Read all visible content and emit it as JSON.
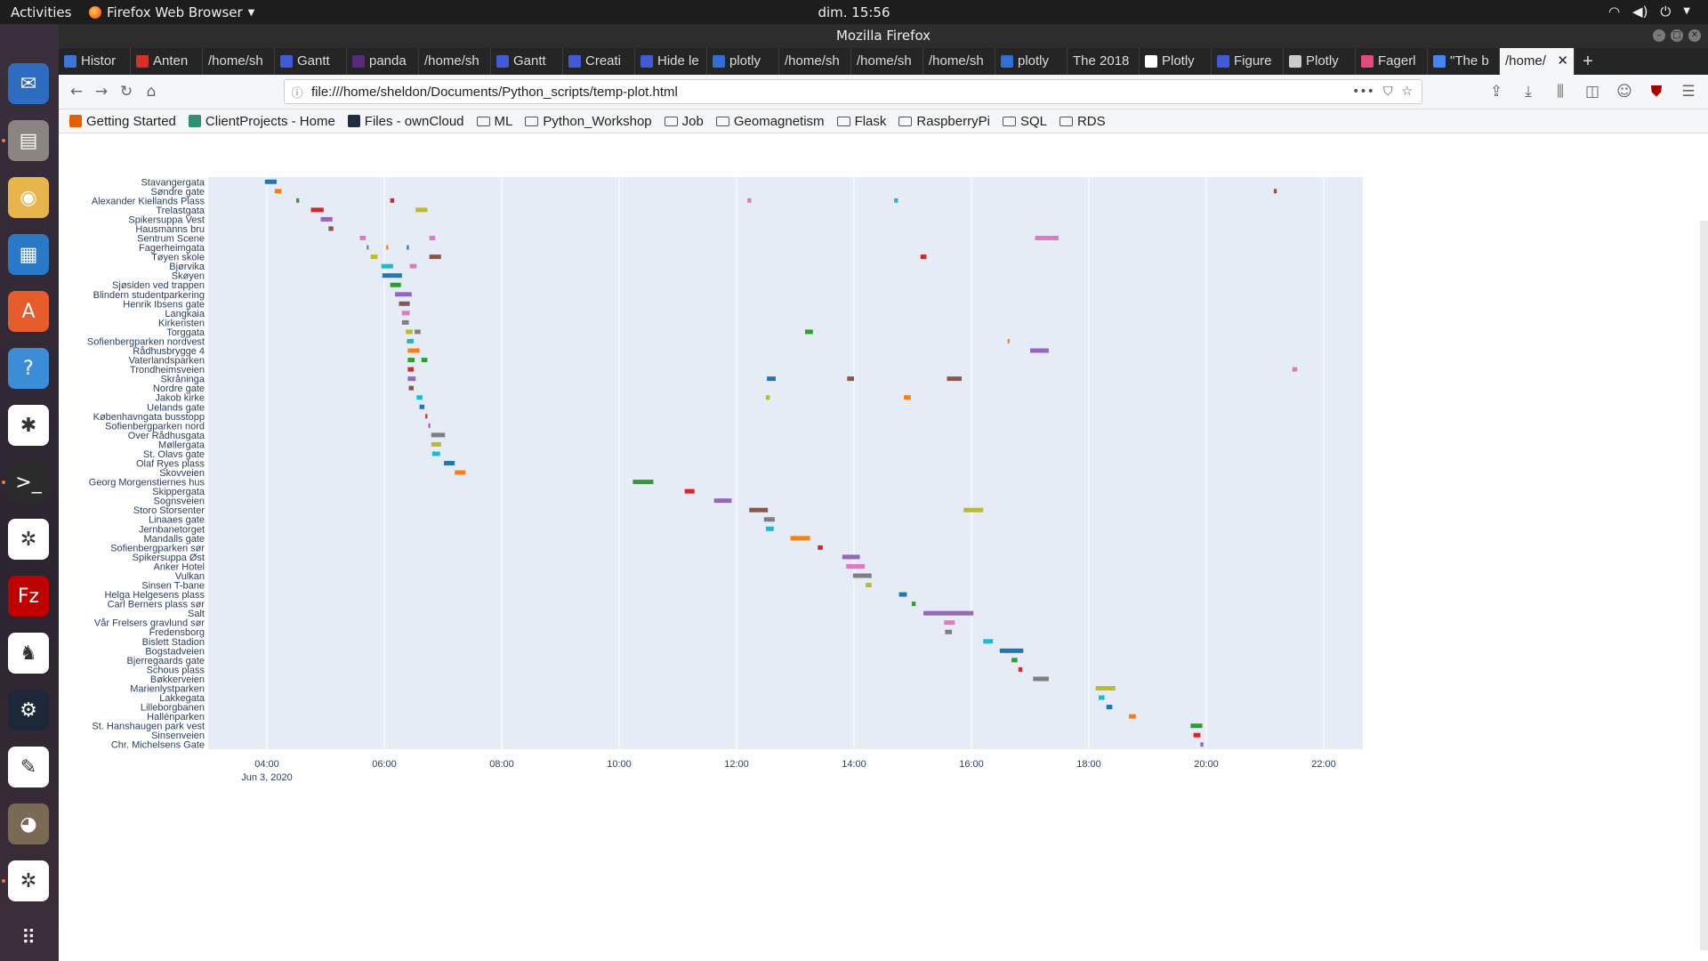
{
  "topbar": {
    "activities": "Activities",
    "app_name": "Firefox Web Browser",
    "clock": "dim. 15:56"
  },
  "window": {
    "title": "Mozilla Firefox"
  },
  "tabs": [
    {
      "label": "Histor",
      "fav": "#3a76d8",
      "active": false
    },
    {
      "label": "Anten",
      "fav": "#d93025",
      "active": false
    },
    {
      "label": "/home/sh",
      "fav": "",
      "active": false
    },
    {
      "label": "Gantt",
      "fav": "#3f5bd8",
      "active": false
    },
    {
      "label": "panda",
      "fav": "#5a2b7b",
      "active": false
    },
    {
      "label": "/home/sh",
      "fav": "",
      "active": false
    },
    {
      "label": "Gantt",
      "fav": "#3f5bd8",
      "active": false
    },
    {
      "label": "Creati",
      "fav": "#3f5bd8",
      "active": false
    },
    {
      "label": "Hide le",
      "fav": "#3f5bd8",
      "active": false
    },
    {
      "label": "plotly",
      "fav": "#2f6fd8",
      "active": false
    },
    {
      "label": "/home/sh",
      "fav": "",
      "active": false
    },
    {
      "label": "/home/sh",
      "fav": "",
      "active": false
    },
    {
      "label": "/home/sh",
      "fav": "",
      "active": false
    },
    {
      "label": "plotly",
      "fav": "#2f6fd8",
      "active": false
    },
    {
      "label": "The 2018",
      "fav": "",
      "active": false
    },
    {
      "label": "Plotly",
      "fav": "#ffffff",
      "active": false
    },
    {
      "label": "Figure",
      "fav": "#3f5bd8",
      "active": false
    },
    {
      "label": "Plotly",
      "fav": "#cccccc",
      "active": false
    },
    {
      "label": "Fagerl",
      "fav": "#e34b7a",
      "active": false
    },
    {
      "label": "\"The b",
      "fav": "#4285f4",
      "active": false
    },
    {
      "label": "/home/",
      "fav": "",
      "active": true
    }
  ],
  "url": "file:///home/sheldon/Documents/Python_scripts/temp-plot.html",
  "bookmarks": [
    {
      "label": "Getting Started",
      "type": "fav",
      "color": "#e66000"
    },
    {
      "label": "ClientProjects - Home",
      "type": "fav",
      "color": "#2f8f6f"
    },
    {
      "label": "Files - ownCloud",
      "type": "fav",
      "color": "#1d2d44"
    },
    {
      "label": "ML",
      "type": "folder"
    },
    {
      "label": "Python_Workshop",
      "type": "folder"
    },
    {
      "label": "Job",
      "type": "folder"
    },
    {
      "label": "Geomagnetism",
      "type": "folder"
    },
    {
      "label": "Flask",
      "type": "folder"
    },
    {
      "label": "RaspberryPi",
      "type": "folder"
    },
    {
      "label": "SQL",
      "type": "folder"
    },
    {
      "label": "RDS",
      "type": "folder"
    }
  ],
  "dock": [
    {
      "name": "thunderbird-icon",
      "color": "#2d6cc0",
      "glyph": "✉",
      "dot": false
    },
    {
      "name": "files-icon",
      "color": "#8a8580",
      "glyph": "▤",
      "dot": true
    },
    {
      "name": "rhythmbox-icon",
      "color": "#e8b54a",
      "glyph": "◉",
      "dot": false
    },
    {
      "name": "libreoffice-writer-icon",
      "color": "#2a78c8",
      "glyph": "▦",
      "dot": false
    },
    {
      "name": "software-center-icon",
      "color": "#e65c2b",
      "glyph": "A",
      "dot": false
    },
    {
      "name": "help-icon",
      "color": "#3b8dd6",
      "glyph": "?",
      "dot": false
    },
    {
      "name": "slack-icon",
      "color": "#ffffff",
      "glyph": "✱",
      "dot": false
    },
    {
      "name": "terminal-icon",
      "color": "#2b2b2b",
      "glyph": ">_",
      "dot": true
    },
    {
      "name": "network-app-icon",
      "color": "#ffffff",
      "glyph": "✲",
      "dot": false
    },
    {
      "name": "filezilla-icon",
      "color": "#bf0000",
      "glyph": "Fz",
      "dot": false
    },
    {
      "name": "penguin-app-icon",
      "color": "#ffffff",
      "glyph": "♞",
      "dot": false
    },
    {
      "name": "steam-icon",
      "color": "#1b2838",
      "glyph": "⚙",
      "dot": false
    },
    {
      "name": "text-editor-icon",
      "color": "#ffffff",
      "glyph": "✎",
      "dot": false
    },
    {
      "name": "gimp-icon",
      "color": "#7a6a55",
      "glyph": "◕",
      "dot": false
    },
    {
      "name": "network-app-2-icon",
      "color": "#ffffff",
      "glyph": "✲",
      "dot": true
    },
    {
      "name": "show-apps-icon",
      "color": "transparent",
      "glyph": "⠿",
      "dot": false
    }
  ],
  "chart_data": {
    "type": "gantt",
    "x_axis_type": "date",
    "x_range": [
      "2020-06-03 03:00",
      "2020-06-03 22:40"
    ],
    "x_ticks": [
      "04:00",
      "06:00",
      "08:00",
      "10:00",
      "12:00",
      "14:00",
      "16:00",
      "18:00",
      "20:00",
      "22:00"
    ],
    "x_date_label": "Jun 3, 2020",
    "background": "#e5ecf6",
    "colors": [
      "#1f77b4",
      "#ff7f0e",
      "#2ca02c",
      "#d62728",
      "#9467bd",
      "#8c564b",
      "#e377c2",
      "#7f7f7f",
      "#bcbd22",
      "#17becf"
    ],
    "categories": [
      "Stavangergata",
      "Søndre gate",
      "Alexander Kiellands Plass",
      "Trelastgata",
      "Spikersuppa Vest",
      "Hausmanns bru",
      "Sentrum Scene",
      "Fagerheimgata",
      "Tøyen skole",
      "Bjørvika",
      "Skøyen",
      "Sjøsiden ved trappen",
      "Blindern studentparkering",
      "Henrik Ibsens gate",
      "Langkaia",
      "Kirkeristen",
      "Torggata",
      "Sofienbergparken nordvest",
      "Rådhusbrygge 4",
      "Vaterlandsparken",
      "Trondheimsveien",
      "Skråninga",
      "Nordre gate",
      "Jakob kirke",
      "Uelands gate",
      "Københavngata busstopp",
      "Sofienbergparken nord",
      "Over Rådhusgata",
      "Møllergata",
      "St. Olavs gate",
      "Olaf Ryes plass",
      "Skovveien",
      "Georg Morgenstiernes hus",
      "Skippergata",
      "Sognsveien",
      "Storo Storsenter",
      "Linaaes gate",
      "Jernbanetorget",
      "Mandalls gate",
      "Sofienbergparken sør",
      "Spikersuppa Øst",
      "Anker Hotel",
      "Vulkan",
      "Sinsen T-bane",
      "Helga Helgesens plass",
      "Carl Berners plass sør",
      "Salt",
      "Vår Frelsers gravlund sør",
      "Fredensborg",
      "Bislett Stadion",
      "Bogstadveien",
      "Bjerregaards gate",
      "Schous plass",
      "Bøkkerveien",
      "Marienlystparken",
      "Lakkegata",
      "Lilleborgbanen",
      "Hallénparken",
      "St. Hanshaugen park vest",
      "Sinsenveien",
      "Chr. Michelsens Gate"
    ],
    "tasks": [
      {
        "row": 0,
        "start": "03:58",
        "end": "04:10",
        "color": 0
      },
      {
        "row": 1,
        "start": "04:08",
        "end": "04:15",
        "color": 1
      },
      {
        "row": 2,
        "start": "04:30",
        "end": "04:33",
        "color": 2
      },
      {
        "row": 2,
        "start": "06:06",
        "end": "06:10",
        "color": 3
      },
      {
        "row": 2,
        "start": "12:11",
        "end": "12:15",
        "color": 6
      },
      {
        "row": 2,
        "start": "14:41",
        "end": "14:45",
        "color": 9
      },
      {
        "row": 1,
        "start": "21:09",
        "end": "21:12",
        "color": 5
      },
      {
        "row": 3,
        "start": "04:45",
        "end": "04:58",
        "color": 3
      },
      {
        "row": 3,
        "start": "06:32",
        "end": "06:44",
        "color": 8
      },
      {
        "row": 4,
        "start": "04:55",
        "end": "05:07",
        "color": 4
      },
      {
        "row": 5,
        "start": "05:03",
        "end": "05:08",
        "color": 5
      },
      {
        "row": 6,
        "start": "05:35",
        "end": "05:41",
        "color": 6
      },
      {
        "row": 6,
        "start": "06:46",
        "end": "06:52",
        "color": 6
      },
      {
        "row": 6,
        "start": "17:05",
        "end": "17:29",
        "color": 6
      },
      {
        "row": 7,
        "start": "05:42",
        "end": "05:44",
        "color": 7
      },
      {
        "row": 7,
        "start": "06:02",
        "end": "06:04",
        "color": 1
      },
      {
        "row": 7,
        "start": "06:23",
        "end": "06:25",
        "color": 0
      },
      {
        "row": 8,
        "start": "05:46",
        "end": "05:53",
        "color": 8
      },
      {
        "row": 8,
        "start": "06:46",
        "end": "06:58",
        "color": 5
      },
      {
        "row": 8,
        "start": "15:08",
        "end": "15:14",
        "color": 3
      },
      {
        "row": 9,
        "start": "05:57",
        "end": "06:09",
        "color": 9
      },
      {
        "row": 9,
        "start": "06:26",
        "end": "06:33",
        "color": 6
      },
      {
        "row": 10,
        "start": "05:58",
        "end": "06:18",
        "color": 0
      },
      {
        "row": 11,
        "start": "06:06",
        "end": "06:17",
        "color": 2
      },
      {
        "row": 12,
        "start": "06:11",
        "end": "06:28",
        "color": 4
      },
      {
        "row": 13,
        "start": "06:15",
        "end": "06:26",
        "color": 5
      },
      {
        "row": 14,
        "start": "06:18",
        "end": "06:26",
        "color": 6
      },
      {
        "row": 15,
        "start": "06:18",
        "end": "06:25",
        "color": 7
      },
      {
        "row": 16,
        "start": "06:22",
        "end": "06:29",
        "color": 8
      },
      {
        "row": 16,
        "start": "06:31",
        "end": "06:37",
        "color": 7
      },
      {
        "row": 16,
        "start": "13:10",
        "end": "13:18",
        "color": 2
      },
      {
        "row": 17,
        "start": "06:23",
        "end": "06:30",
        "color": 9
      },
      {
        "row": 17,
        "start": "16:37",
        "end": "16:39",
        "color": 1
      },
      {
        "row": 18,
        "start": "06:24",
        "end": "06:36",
        "color": 1
      },
      {
        "row": 18,
        "start": "17:00",
        "end": "17:19",
        "color": 4
      },
      {
        "row": 19,
        "start": "06:24",
        "end": "06:31",
        "color": 2
      },
      {
        "row": 19,
        "start": "06:38",
        "end": "06:44",
        "color": 2
      },
      {
        "row": 20,
        "start": "06:24",
        "end": "06:30",
        "color": 3
      },
      {
        "row": 20,
        "start": "21:28",
        "end": "21:33",
        "color": 6
      },
      {
        "row": 21,
        "start": "06:24",
        "end": "06:32",
        "color": 4
      },
      {
        "row": 21,
        "start": "12:31",
        "end": "12:40",
        "color": 0
      },
      {
        "row": 21,
        "start": "13:53",
        "end": "14:00",
        "color": 5
      },
      {
        "row": 21,
        "start": "15:35",
        "end": "15:50",
        "color": 5
      },
      {
        "row": 22,
        "start": "06:25",
        "end": "06:30",
        "color": 5
      },
      {
        "row": 23,
        "start": "06:33",
        "end": "06:39",
        "color": 9
      },
      {
        "row": 23,
        "start": "12:30",
        "end": "12:34",
        "color": 8
      },
      {
        "row": 23,
        "start": "14:51",
        "end": "14:58",
        "color": 1
      },
      {
        "row": 24,
        "start": "06:36",
        "end": "06:41",
        "color": 0
      },
      {
        "row": 25,
        "start": "06:42",
        "end": "06:44",
        "color": 3
      },
      {
        "row": 26,
        "start": "06:45",
        "end": "06:47",
        "color": 4
      },
      {
        "row": 27,
        "start": "06:48",
        "end": "07:02",
        "color": 7
      },
      {
        "row": 28,
        "start": "06:48",
        "end": "06:58",
        "color": 8
      },
      {
        "row": 29,
        "start": "06:49",
        "end": "06:57",
        "color": 9
      },
      {
        "row": 30,
        "start": "07:01",
        "end": "07:12",
        "color": 0
      },
      {
        "row": 31,
        "start": "07:12",
        "end": "07:23",
        "color": 1
      },
      {
        "row": 32,
        "start": "10:14",
        "end": "10:35",
        "color": 2
      },
      {
        "row": 33,
        "start": "11:07",
        "end": "11:17",
        "color": 3
      },
      {
        "row": 34,
        "start": "11:37",
        "end": "11:55",
        "color": 4
      },
      {
        "row": 35,
        "start": "12:13",
        "end": "12:32",
        "color": 5
      },
      {
        "row": 35,
        "start": "15:52",
        "end": "16:12",
        "color": 8
      },
      {
        "row": 36,
        "start": "12:28",
        "end": "12:39",
        "color": 7
      },
      {
        "row": 37,
        "start": "12:30",
        "end": "12:38",
        "color": 9
      },
      {
        "row": 38,
        "start": "12:55",
        "end": "13:15",
        "color": 1
      },
      {
        "row": 39,
        "start": "13:23",
        "end": "13:28",
        "color": 3
      },
      {
        "row": 40,
        "start": "13:48",
        "end": "14:06",
        "color": 4
      },
      {
        "row": 41,
        "start": "13:52",
        "end": "14:11",
        "color": 6
      },
      {
        "row": 42,
        "start": "13:59",
        "end": "14:18",
        "color": 7
      },
      {
        "row": 43,
        "start": "14:12",
        "end": "14:18",
        "color": 8
      },
      {
        "row": 44,
        "start": "14:46",
        "end": "14:54",
        "color": 0
      },
      {
        "row": 45,
        "start": "14:59",
        "end": "15:03",
        "color": 2
      },
      {
        "row": 46,
        "start": "15:11",
        "end": "16:02",
        "color": 4
      },
      {
        "row": 47,
        "start": "15:32",
        "end": "15:43",
        "color": 6
      },
      {
        "row": 48,
        "start": "15:33",
        "end": "15:40",
        "color": 7
      },
      {
        "row": 49,
        "start": "16:12",
        "end": "16:22",
        "color": 9
      },
      {
        "row": 50,
        "start": "16:29",
        "end": "16:53",
        "color": 0
      },
      {
        "row": 51,
        "start": "16:41",
        "end": "16:47",
        "color": 2
      },
      {
        "row": 52,
        "start": "16:48",
        "end": "16:52",
        "color": 3
      },
      {
        "row": 53,
        "start": "17:03",
        "end": "17:19",
        "color": 7
      },
      {
        "row": 54,
        "start": "18:07",
        "end": "18:27",
        "color": 8
      },
      {
        "row": 55,
        "start": "18:10",
        "end": "18:16",
        "color": 9
      },
      {
        "row": 56,
        "start": "18:18",
        "end": "18:24",
        "color": 0
      },
      {
        "row": 57,
        "start": "18:41",
        "end": "18:48",
        "color": 1
      },
      {
        "row": 58,
        "start": "19:44",
        "end": "19:56",
        "color": 2
      },
      {
        "row": 59,
        "start": "19:47",
        "end": "19:54",
        "color": 3
      },
      {
        "row": 60,
        "start": "19:54",
        "end": "19:57",
        "color": 4
      }
    ]
  }
}
